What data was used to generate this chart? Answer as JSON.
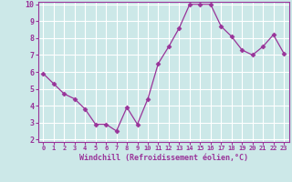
{
  "x": [
    0,
    1,
    2,
    3,
    4,
    5,
    6,
    7,
    8,
    9,
    10,
    11,
    12,
    13,
    14,
    15,
    16,
    17,
    18,
    19,
    20,
    21,
    22,
    23
  ],
  "y": [
    5.9,
    5.3,
    4.7,
    4.4,
    3.8,
    2.9,
    2.9,
    2.5,
    3.9,
    2.9,
    4.4,
    6.5,
    7.5,
    8.6,
    10.0,
    10.0,
    10.0,
    8.7,
    8.1,
    7.3,
    7.0,
    7.5,
    8.2,
    7.1
  ],
  "line_color": "#993399",
  "marker": "D",
  "marker_size": 2.5,
  "bg_color": "#cce8e8",
  "grid_color": "#ffffff",
  "xlabel": "Windchill (Refroidissement éolien,°C)",
  "xlabel_color": "#993399",
  "tick_color": "#993399",
  "ylim": [
    2,
    10
  ],
  "xlim": [
    -0.5,
    23.5
  ],
  "yticks": [
    2,
    3,
    4,
    5,
    6,
    7,
    8,
    9,
    10
  ],
  "xticks": [
    0,
    1,
    2,
    3,
    4,
    5,
    6,
    7,
    8,
    9,
    10,
    11,
    12,
    13,
    14,
    15,
    16,
    17,
    18,
    19,
    20,
    21,
    22,
    23
  ]
}
